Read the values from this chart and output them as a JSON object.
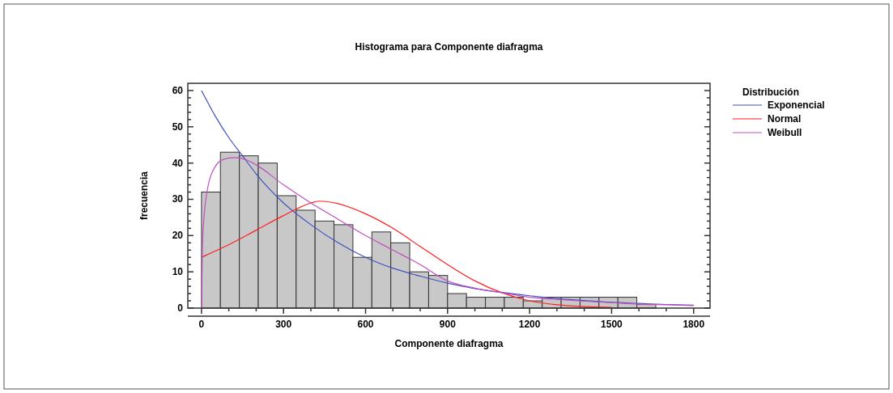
{
  "chart_data": {
    "type": "histogram",
    "title": "Histograma para Componente diafragma",
    "xlabel": "Componente diafragma",
    "ylabel": "frecuencia",
    "legend_title": "Distribución",
    "legend": "right",
    "color": "#c8c8c8",
    "bins": [
      0,
      69.2,
      138.5,
      207.7,
      276.9,
      346.2,
      415.4,
      484.6,
      553.8,
      623.1,
      692.3,
      761.5,
      830.8,
      900,
      969.2,
      1038.5,
      1107.7,
      1176.9,
      1246.2,
      1315.4,
      1384.6,
      1453.8,
      1523.1,
      1592.3,
      1661.5
    ],
    "values": [
      32,
      43,
      42,
      40,
      31,
      27,
      24,
      23,
      14,
      21,
      18,
      10,
      9,
      4,
      3,
      3,
      3,
      2,
      3,
      3,
      3,
      3,
      3,
      1
    ],
    "series": [
      {
        "type": "line",
        "name": "Exponencial",
        "color": "#4050c0",
        "x": [
          0,
          50,
          100,
          150,
          200,
          300,
          400,
          500,
          600,
          700,
          800,
          900,
          1000,
          1100,
          1200,
          1300,
          1400,
          1500,
          1600,
          1700,
          1800
        ],
        "values": [
          60,
          53,
          47,
          42,
          37,
          29,
          23,
          18,
          14,
          11,
          8.8,
          6.9,
          5.4,
          4.3,
          3.4,
          2.6,
          2.1,
          1.6,
          1.3,
          1,
          0.8
        ]
      },
      {
        "type": "line",
        "name": "Normal",
        "color": "#ff2020",
        "x": [
          0,
          100,
          200,
          300,
          400,
          430,
          500,
          600,
          700,
          800,
          900,
          1000,
          1100,
          1200,
          1300,
          1400,
          1500
        ],
        "values": [
          14,
          17.5,
          21.5,
          25.5,
          29,
          29.5,
          28.8,
          26,
          22,
          17,
          12,
          7.5,
          4.2,
          2,
          0.9,
          0.4,
          0.2
        ]
      },
      {
        "type": "line",
        "name": "Weibull",
        "color": "#c050c0",
        "x": [
          0,
          5,
          20,
          50,
          80,
          120,
          160,
          200,
          300,
          400,
          500,
          600,
          700,
          800,
          900,
          1000,
          1100,
          1200,
          1300,
          1400,
          1500,
          1600,
          1700,
          1800
        ],
        "values": [
          0,
          20,
          32,
          39,
          41,
          41.5,
          41,
          39.5,
          34,
          29,
          24.5,
          20,
          16,
          12,
          7.5,
          5.5,
          4.2,
          3,
          2.4,
          1.9,
          1.5,
          1.1,
          0.9,
          0.7
        ]
      }
    ],
    "xlim": [
      -50,
      1860
    ],
    "ylim": [
      0,
      62
    ],
    "xticks": [
      0,
      {
        "value": 100,
        "label": null
      },
      {
        "value": 200,
        "label": null
      },
      300,
      {
        "value": 400,
        "label": null
      },
      {
        "value": 500,
        "label": null
      },
      600,
      {
        "value": 700,
        "label": null
      },
      {
        "value": 800,
        "label": null
      },
      900,
      {
        "value": 1000,
        "label": null
      },
      {
        "value": 1100,
        "label": null
      },
      1200,
      {
        "value": 1300,
        "label": null
      },
      {
        "value": 1400,
        "label": null
      },
      1500,
      {
        "value": 1600,
        "label": null
      },
      {
        "value": 1700,
        "label": null
      },
      1800
    ],
    "yticks": [
      0,
      {
        "value": 2,
        "label": null
      },
      {
        "value": 4,
        "label": null
      },
      {
        "value": 6,
        "label": null
      },
      {
        "value": 8,
        "label": null
      },
      10,
      {
        "value": 12,
        "label": null
      },
      {
        "value": 14,
        "label": null
      },
      {
        "value": 16,
        "label": null
      },
      {
        "value": 18,
        "label": null
      },
      20,
      {
        "value": 22,
        "label": null
      },
      {
        "value": 24,
        "label": null
      },
      {
        "value": 26,
        "label": null
      },
      {
        "value": 28,
        "label": null
      },
      30,
      {
        "value": 32,
        "label": null
      },
      {
        "value": 34,
        "label": null
      },
      {
        "value": 36,
        "label": null
      },
      {
        "value": 38,
        "label": null
      },
      40,
      {
        "value": 42,
        "label": null
      },
      {
        "value": 44,
        "label": null
      },
      {
        "value": 46,
        "label": null
      },
      {
        "value": 48,
        "label": null
      },
      50,
      {
        "value": 52,
        "label": null
      },
      {
        "value": 54,
        "label": null
      },
      {
        "value": 56,
        "label": null
      },
      {
        "value": 58,
        "label": null
      },
      60
    ],
    "grid": false
  }
}
